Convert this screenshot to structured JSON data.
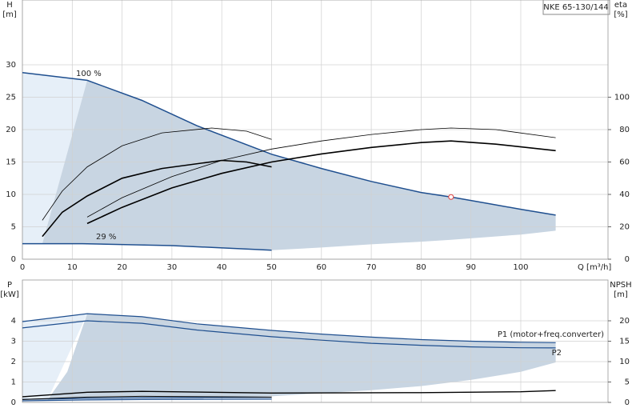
{
  "chart_data": [
    {
      "type": "line",
      "title": "NKE 65-130/144",
      "ylabel": [
        "H",
        "[m]"
      ],
      "y2label": [
        "eta",
        "[%]"
      ],
      "xlabel": "Q [m³/h]",
      "xlim": [
        0,
        117.5
      ],
      "xticks": [
        0,
        10,
        20,
        30,
        40,
        50,
        60,
        70,
        80,
        90,
        100
      ],
      "ylim": [
        0,
        40
      ],
      "yticks": [
        0,
        5,
        10,
        15,
        20,
        25,
        30
      ],
      "y2lim": [
        0,
        160
      ],
      "y2ticks": [
        0,
        20,
        40,
        60,
        80,
        100
      ],
      "grid": true,
      "show_xtick_labels": true,
      "annotations": [
        "100 %",
        "29 %"
      ],
      "series": [
        {
          "type": "area",
          "color": "#e6eff8",
          "x": [
            0,
            4,
            13
          ],
          "values": [
            28.8,
            28.4,
            27.6
          ],
          "lower": [
            2.4,
            2.4,
            27.6
          ]
        },
        {
          "type": "area",
          "color": "#c8d5e2",
          "x": [
            4,
            13,
            24,
            35,
            50,
            60,
            70,
            80,
            86,
            100,
            107
          ],
          "values": [
            2.4,
            27.6,
            24.5,
            20.6,
            16.2,
            14.0,
            12.0,
            10.3,
            9.6,
            7.7,
            6.8
          ],
          "lower": [
            2.4,
            2.4,
            2.3,
            2.0,
            1.4,
            1.8,
            2.3,
            2.7,
            3.0,
            3.8,
            4.4
          ]
        },
        {
          "type": "line",
          "color": "#1f4f8f",
          "width": 1.5,
          "x": [
            0,
            13,
            24,
            35,
            50,
            60,
            70,
            80,
            86,
            100,
            107
          ],
          "values": [
            28.8,
            27.6,
            24.5,
            20.6,
            16.2,
            14.0,
            12.0,
            10.3,
            9.6,
            7.7,
            6.8
          ]
        },
        {
          "type": "line",
          "color": "#1f4f8f",
          "width": 1.5,
          "x": [
            0,
            12,
            30,
            50
          ],
          "values": [
            2.4,
            2.4,
            2.1,
            1.4
          ]
        },
        {
          "type": "line",
          "color": "#000000",
          "width": 0.8,
          "axis": "y2",
          "x": [
            13,
            20,
            30,
            40,
            50,
            60,
            70,
            80,
            86,
            95,
            107
          ],
          "values": [
            26,
            38,
            51,
            61,
            68,
            73,
            77,
            80,
            81,
            80,
            75
          ]
        },
        {
          "type": "line",
          "color": "#000000",
          "width": 1.6,
          "axis": "y2",
          "x": [
            13,
            20,
            30,
            40,
            50,
            60,
            70,
            80,
            86,
            95,
            107
          ],
          "values": [
            22,
            32,
            44,
            53,
            60,
            65,
            69,
            72,
            73,
            71,
            67
          ]
        },
        {
          "type": "line",
          "color": "#000000",
          "width": 0.8,
          "axis": "y2",
          "x": [
            4,
            8,
            13,
            20,
            28,
            38,
            45,
            50
          ],
          "values": [
            24,
            42,
            57,
            70,
            78,
            81,
            79,
            74
          ]
        },
        {
          "type": "line",
          "color": "#000000",
          "width": 1.6,
          "axis": "y2",
          "x": [
            4,
            8,
            13,
            20,
            28,
            40,
            45,
            50
          ],
          "values": [
            14,
            29,
            39,
            50,
            56,
            61,
            60,
            57
          ]
        },
        {
          "type": "point",
          "color": "#e04040",
          "x": [
            86
          ],
          "values": [
            9.6
          ]
        }
      ]
    },
    {
      "type": "line",
      "ylabel": [
        "P",
        "[kW]"
      ],
      "y2label": [
        "NPSH",
        "[m]"
      ],
      "xlim": [
        0,
        117.5
      ],
      "xticks": [
        0,
        10,
        20,
        30,
        40,
        50,
        60,
        70,
        80,
        90,
        100
      ],
      "ylim": [
        0,
        6
      ],
      "yticks": [
        0,
        1,
        2,
        3,
        4
      ],
      "y2lim": [
        0,
        30
      ],
      "y2ticks": [
        0,
        5,
        10,
        15,
        20
      ],
      "grid": true,
      "show_xtick_labels": false,
      "annotations": [
        "P1 (motor+freq.converter)",
        "P2"
      ],
      "series": [
        {
          "type": "area",
          "color": "#e6eff8",
          "x": [
            0,
            5,
            13
          ],
          "values": [
            3.96,
            4.1,
            4.35
          ],
          "lower": [
            0.1,
            0.1,
            4.35
          ]
        },
        {
          "type": "area",
          "color": "#c8d5e2",
          "x": [
            5,
            9,
            13,
            24,
            35,
            50,
            60,
            70,
            80,
            90,
            100,
            107
          ],
          "values": [
            0.1,
            1.5,
            4.35,
            4.2,
            3.85,
            3.53,
            3.35,
            3.2,
            3.08,
            3.0,
            2.95,
            2.93
          ],
          "lower": [
            0.1,
            0.15,
            0.2,
            0.22,
            0.25,
            0.3,
            0.45,
            0.6,
            0.8,
            1.1,
            1.5,
            1.96
          ]
        },
        {
          "type": "line",
          "color": "#1f4f8f",
          "width": 1.2,
          "x": [
            0,
            13,
            24,
            35,
            50,
            60,
            70,
            80,
            90,
            100,
            107
          ],
          "values": [
            3.96,
            4.35,
            4.2,
            3.85,
            3.53,
            3.35,
            3.2,
            3.08,
            3.0,
            2.95,
            2.93
          ]
        },
        {
          "type": "line",
          "color": "#1f4f8f",
          "width": 1.2,
          "x": [
            0,
            13,
            24,
            35,
            50,
            60,
            70,
            80,
            90,
            100,
            107
          ],
          "values": [
            3.65,
            4.0,
            3.88,
            3.55,
            3.22,
            3.05,
            2.9,
            2.8,
            2.72,
            2.68,
            2.67
          ]
        },
        {
          "type": "line",
          "color": "#1f4f8f",
          "width": 1.2,
          "x": [
            0,
            13,
            24,
            50
          ],
          "values": [
            0.15,
            0.2,
            0.22,
            0.25
          ]
        },
        {
          "type": "line",
          "color": "#1f4f8f",
          "width": 1.2,
          "x": [
            0,
            13,
            24,
            50
          ],
          "values": [
            0.08,
            0.12,
            0.14,
            0.16
          ]
        },
        {
          "type": "line",
          "color": "#000000",
          "width": 1.4,
          "axis": "y2",
          "x": [
            0,
            13,
            24,
            50,
            80,
            100,
            107
          ],
          "values": [
            1.4,
            2.5,
            2.7,
            2.3,
            2.4,
            2.6,
            2.9
          ]
        },
        {
          "type": "line",
          "color": "#000000",
          "width": 1.0,
          "axis": "y2",
          "x": [
            0,
            13,
            24,
            50
          ],
          "values": [
            0.7,
            1.3,
            1.5,
            1.3
          ]
        }
      ]
    }
  ]
}
